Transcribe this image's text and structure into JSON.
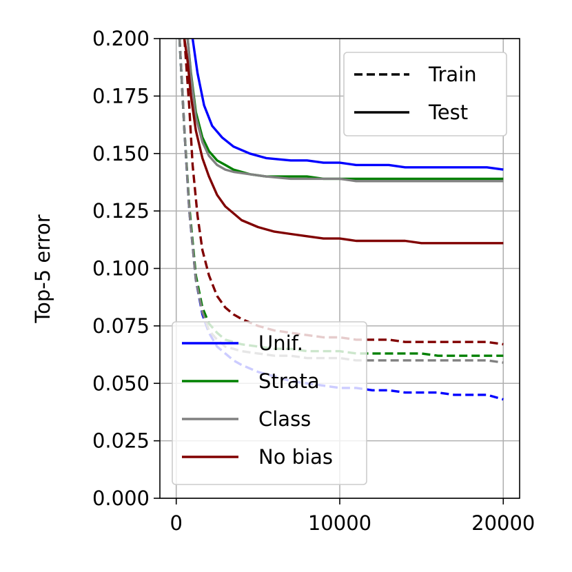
{
  "chart_data": {
    "type": "line",
    "title": "",
    "xlabel": "",
    "ylabel": "Top-5 error",
    "xlim": [
      -1000,
      21000
    ],
    "ylim": [
      0.0,
      0.2
    ],
    "xticks": [
      0,
      10000,
      20000
    ],
    "xtick_labels": [
      "0",
      "10000",
      "20000"
    ],
    "yticks": [
      0.0,
      0.025,
      0.05,
      0.075,
      0.1,
      0.125,
      0.15,
      0.175,
      0.2
    ],
    "ytick_labels": [
      "0.000",
      "0.025",
      "0.050",
      "0.075",
      "0.100",
      "0.125",
      "0.150",
      "0.175",
      "0.200"
    ],
    "grid": true,
    "style_legend": {
      "placement": "top-right",
      "entries": [
        {
          "label": "Train",
          "dash": "dashed"
        },
        {
          "label": "Test",
          "dash": "solid"
        }
      ]
    },
    "method_legend": {
      "placement": "lower-left",
      "entries": [
        {
          "label": "Unif.",
          "color": "#0000ff"
        },
        {
          "label": "Strata",
          "color": "#008000"
        },
        {
          "label": "Class",
          "color": "#808080"
        },
        {
          "label": "No bias",
          "color": "#800000"
        }
      ]
    },
    "series": [
      {
        "method": "Unif.",
        "kind": "Train",
        "color": "#0000ff",
        "x": [
          200,
          500,
          800,
          1200,
          1600,
          2000,
          2500,
          3000,
          3500,
          4000,
          5000,
          6000,
          7000,
          8000,
          9000,
          10000,
          11000,
          12000,
          13000,
          14000,
          15000,
          16000,
          17000,
          18000,
          19000,
          20000
        ],
        "y": [
          0.2,
          0.16,
          0.125,
          0.095,
          0.08,
          0.072,
          0.066,
          0.063,
          0.06,
          0.058,
          0.055,
          0.053,
          0.051,
          0.05,
          0.049,
          0.048,
          0.048,
          0.047,
          0.047,
          0.046,
          0.046,
          0.046,
          0.045,
          0.045,
          0.045,
          0.043
        ]
      },
      {
        "method": "Strata",
        "kind": "Train",
        "color": "#008000",
        "x": [
          200,
          500,
          800,
          1200,
          1600,
          2000,
          2500,
          3000,
          3500,
          4000,
          5000,
          6000,
          7000,
          8000,
          9000,
          10000,
          11000,
          12000,
          13000,
          14000,
          15000,
          16000,
          17000,
          18000,
          19000,
          20000
        ],
        "y": [
          0.2,
          0.16,
          0.127,
          0.097,
          0.083,
          0.076,
          0.072,
          0.069,
          0.068,
          0.067,
          0.066,
          0.065,
          0.065,
          0.064,
          0.064,
          0.064,
          0.063,
          0.063,
          0.063,
          0.063,
          0.063,
          0.062,
          0.062,
          0.062,
          0.062,
          0.062
        ]
      },
      {
        "method": "Class",
        "kind": "Train",
        "color": "#808080",
        "x": [
          200,
          500,
          800,
          1200,
          1600,
          2000,
          2500,
          3000,
          3500,
          4000,
          5000,
          6000,
          7000,
          8000,
          9000,
          10000,
          11000,
          12000,
          13000,
          14000,
          15000,
          16000,
          17000,
          18000,
          19000,
          20000
        ],
        "y": [
          0.2,
          0.16,
          0.125,
          0.095,
          0.081,
          0.073,
          0.069,
          0.066,
          0.065,
          0.064,
          0.063,
          0.062,
          0.062,
          0.061,
          0.061,
          0.061,
          0.06,
          0.06,
          0.06,
          0.06,
          0.06,
          0.06,
          0.06,
          0.06,
          0.06,
          0.059
        ]
      },
      {
        "method": "No bias",
        "kind": "Train",
        "color": "#800000",
        "x": [
          500,
          800,
          1000,
          1300,
          1600,
          2000,
          2500,
          3000,
          3500,
          4000,
          5000,
          6000,
          7000,
          8000,
          9000,
          10000,
          11000,
          12000,
          13000,
          14000,
          15000,
          16000,
          17000,
          18000,
          19000,
          20000
        ],
        "y": [
          0.2,
          0.17,
          0.145,
          0.123,
          0.108,
          0.097,
          0.088,
          0.083,
          0.08,
          0.078,
          0.075,
          0.073,
          0.072,
          0.071,
          0.07,
          0.07,
          0.069,
          0.069,
          0.069,
          0.068,
          0.068,
          0.068,
          0.068,
          0.068,
          0.068,
          0.067
        ]
      },
      {
        "method": "Unif.",
        "kind": "Test",
        "color": "#0000ff",
        "x": [
          1000,
          1300,
          1700,
          2200,
          2800,
          3500,
          4500,
          5500,
          7000,
          8000,
          9000,
          10000,
          11000,
          12000,
          13000,
          14000,
          15000,
          16000,
          17000,
          18000,
          19000,
          20000
        ],
        "y": [
          0.2,
          0.185,
          0.171,
          0.162,
          0.157,
          0.153,
          0.15,
          0.148,
          0.147,
          0.147,
          0.146,
          0.146,
          0.145,
          0.145,
          0.145,
          0.144,
          0.144,
          0.144,
          0.144,
          0.144,
          0.144,
          0.143
        ]
      },
      {
        "method": "Strata",
        "kind": "Test",
        "color": "#008000",
        "x": [
          700,
          900,
          1200,
          1600,
          2000,
          2500,
          3000,
          3500,
          4500,
          5500,
          7000,
          8000,
          9000,
          10000,
          11000,
          12000,
          13000,
          14000,
          15000,
          16000,
          17000,
          18000,
          19000,
          20000
        ],
        "y": [
          0.2,
          0.185,
          0.168,
          0.157,
          0.151,
          0.147,
          0.145,
          0.143,
          0.141,
          0.14,
          0.14,
          0.14,
          0.139,
          0.139,
          0.139,
          0.139,
          0.139,
          0.139,
          0.139,
          0.139,
          0.139,
          0.139,
          0.139,
          0.139
        ]
      },
      {
        "method": "Class",
        "kind": "Test",
        "color": "#808080",
        "x": [
          700,
          900,
          1200,
          1600,
          2000,
          2500,
          3000,
          3500,
          4500,
          5500,
          7000,
          8000,
          9000,
          10000,
          11000,
          12000,
          13000,
          14000,
          15000,
          16000,
          17000,
          18000,
          19000,
          20000
        ],
        "y": [
          0.2,
          0.184,
          0.166,
          0.155,
          0.149,
          0.145,
          0.143,
          0.142,
          0.141,
          0.14,
          0.139,
          0.139,
          0.139,
          0.139,
          0.138,
          0.138,
          0.138,
          0.138,
          0.138,
          0.138,
          0.138,
          0.138,
          0.138,
          0.138
        ]
      },
      {
        "method": "No bias",
        "kind": "Test",
        "color": "#800000",
        "x": [
          500,
          700,
          900,
          1200,
          1600,
          2000,
          2500,
          3000,
          3500,
          4000,
          5000,
          6000,
          7000,
          8000,
          9000,
          10000,
          11000,
          12000,
          13000,
          14000,
          15000,
          16000,
          17000,
          18000,
          19000,
          20000
        ],
        "y": [
          0.2,
          0.19,
          0.175,
          0.16,
          0.148,
          0.14,
          0.132,
          0.127,
          0.124,
          0.121,
          0.118,
          0.116,
          0.115,
          0.114,
          0.113,
          0.113,
          0.112,
          0.112,
          0.112,
          0.112,
          0.111,
          0.111,
          0.111,
          0.111,
          0.111,
          0.111
        ]
      }
    ]
  }
}
